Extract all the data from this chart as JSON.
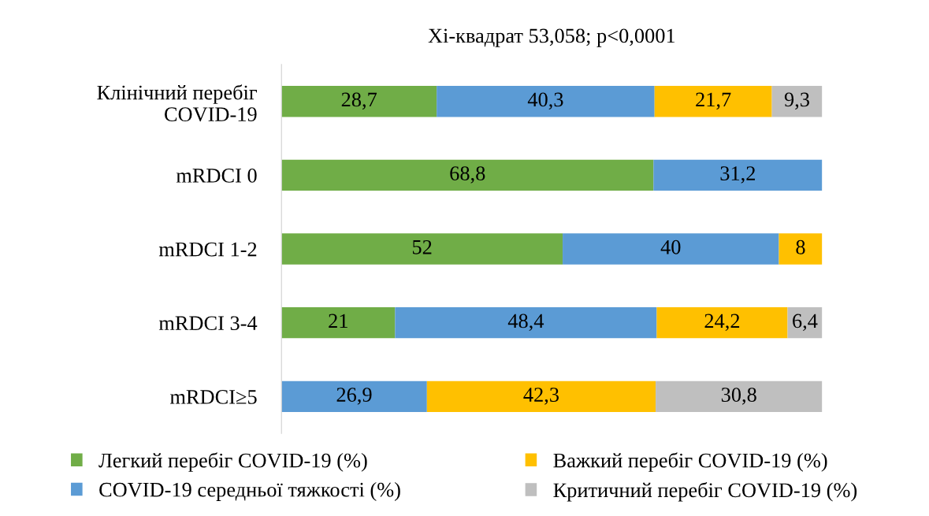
{
  "chart_data": {
    "type": "bar",
    "orientation": "horizontal",
    "stacked": true,
    "title": "Хі-квадрат 53,058; р<0,0001",
    "categories": [
      "Клінічний перебіг COVID-19",
      "mRDCI 0",
      "mRDCI 1-2",
      "mRDCI 3-4",
      "mRDCI≥5"
    ],
    "series": [
      {
        "name": "Легкий перебіг COVID-19 (%)",
        "color": "#70ad47",
        "values": [
          28.7,
          68.8,
          52,
          21,
          null
        ],
        "value_labels": [
          "28,7",
          "68,8",
          "52",
          "21",
          null
        ]
      },
      {
        "name": "COVID-19 середньої тяжкості (%)",
        "color": "#5b9bd5",
        "values": [
          40.3,
          31.2,
          40,
          48.4,
          26.9
        ],
        "value_labels": [
          "40,3",
          "31,2",
          "40",
          "48,4",
          "26,9"
        ]
      },
      {
        "name": "Важкий перебіг COVID-19 (%)",
        "color": "#ffc000",
        "values": [
          21.7,
          null,
          8,
          24.2,
          42.3
        ],
        "value_labels": [
          "21,7",
          null,
          "8",
          "24,2",
          "42,3"
        ]
      },
      {
        "name": "Критичний перебіг COVID-19 (%)",
        "color": "#bfbfbf",
        "values": [
          9.3,
          null,
          null,
          6.4,
          30.8
        ],
        "value_labels": [
          "9,3",
          null,
          null,
          "6,4",
          "30,8"
        ]
      }
    ],
    "tick_labels": "y",
    "grid": false,
    "legend": "bottom"
  }
}
